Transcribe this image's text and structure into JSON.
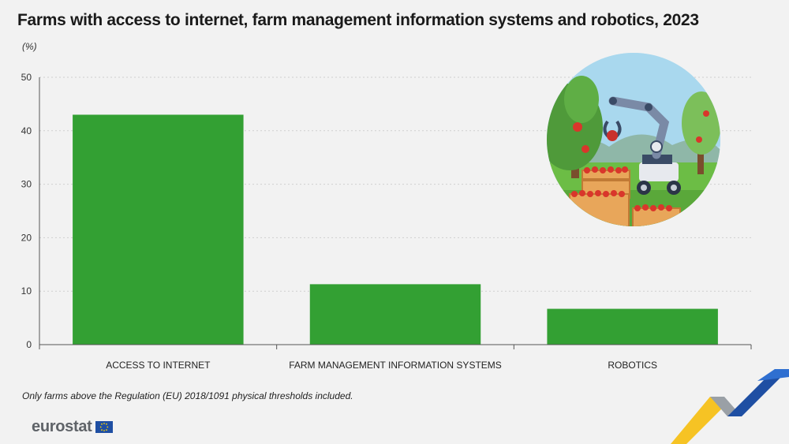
{
  "title": "Farms with access to internet, farm management information systems and robotics, 2023",
  "unit": "(%)",
  "footnote": "Only farms above the Regulation (EU) 2018/1091 physical thresholds included.",
  "brand": {
    "name": "eurostat",
    "logo_icon": "eu-flag-icon"
  },
  "illustration": {
    "icon": "farm-robot-harvesting-apples-icon"
  },
  "colors": {
    "bar": "#33a033",
    "background": "#f2f2f2",
    "grid": "#cfcfcf"
  },
  "chart_data": {
    "type": "bar",
    "categories": [
      "ACCESS TO INTERNET",
      "FARM MANAGEMENT INFORMATION SYSTEMS",
      "ROBOTICS"
    ],
    "values": [
      43.0,
      11.3,
      6.7
    ],
    "ylim": [
      0,
      50
    ],
    "yticks": [
      0,
      10,
      20,
      30,
      40,
      50
    ],
    "xlabel": "",
    "ylabel": "",
    "grid": true
  }
}
